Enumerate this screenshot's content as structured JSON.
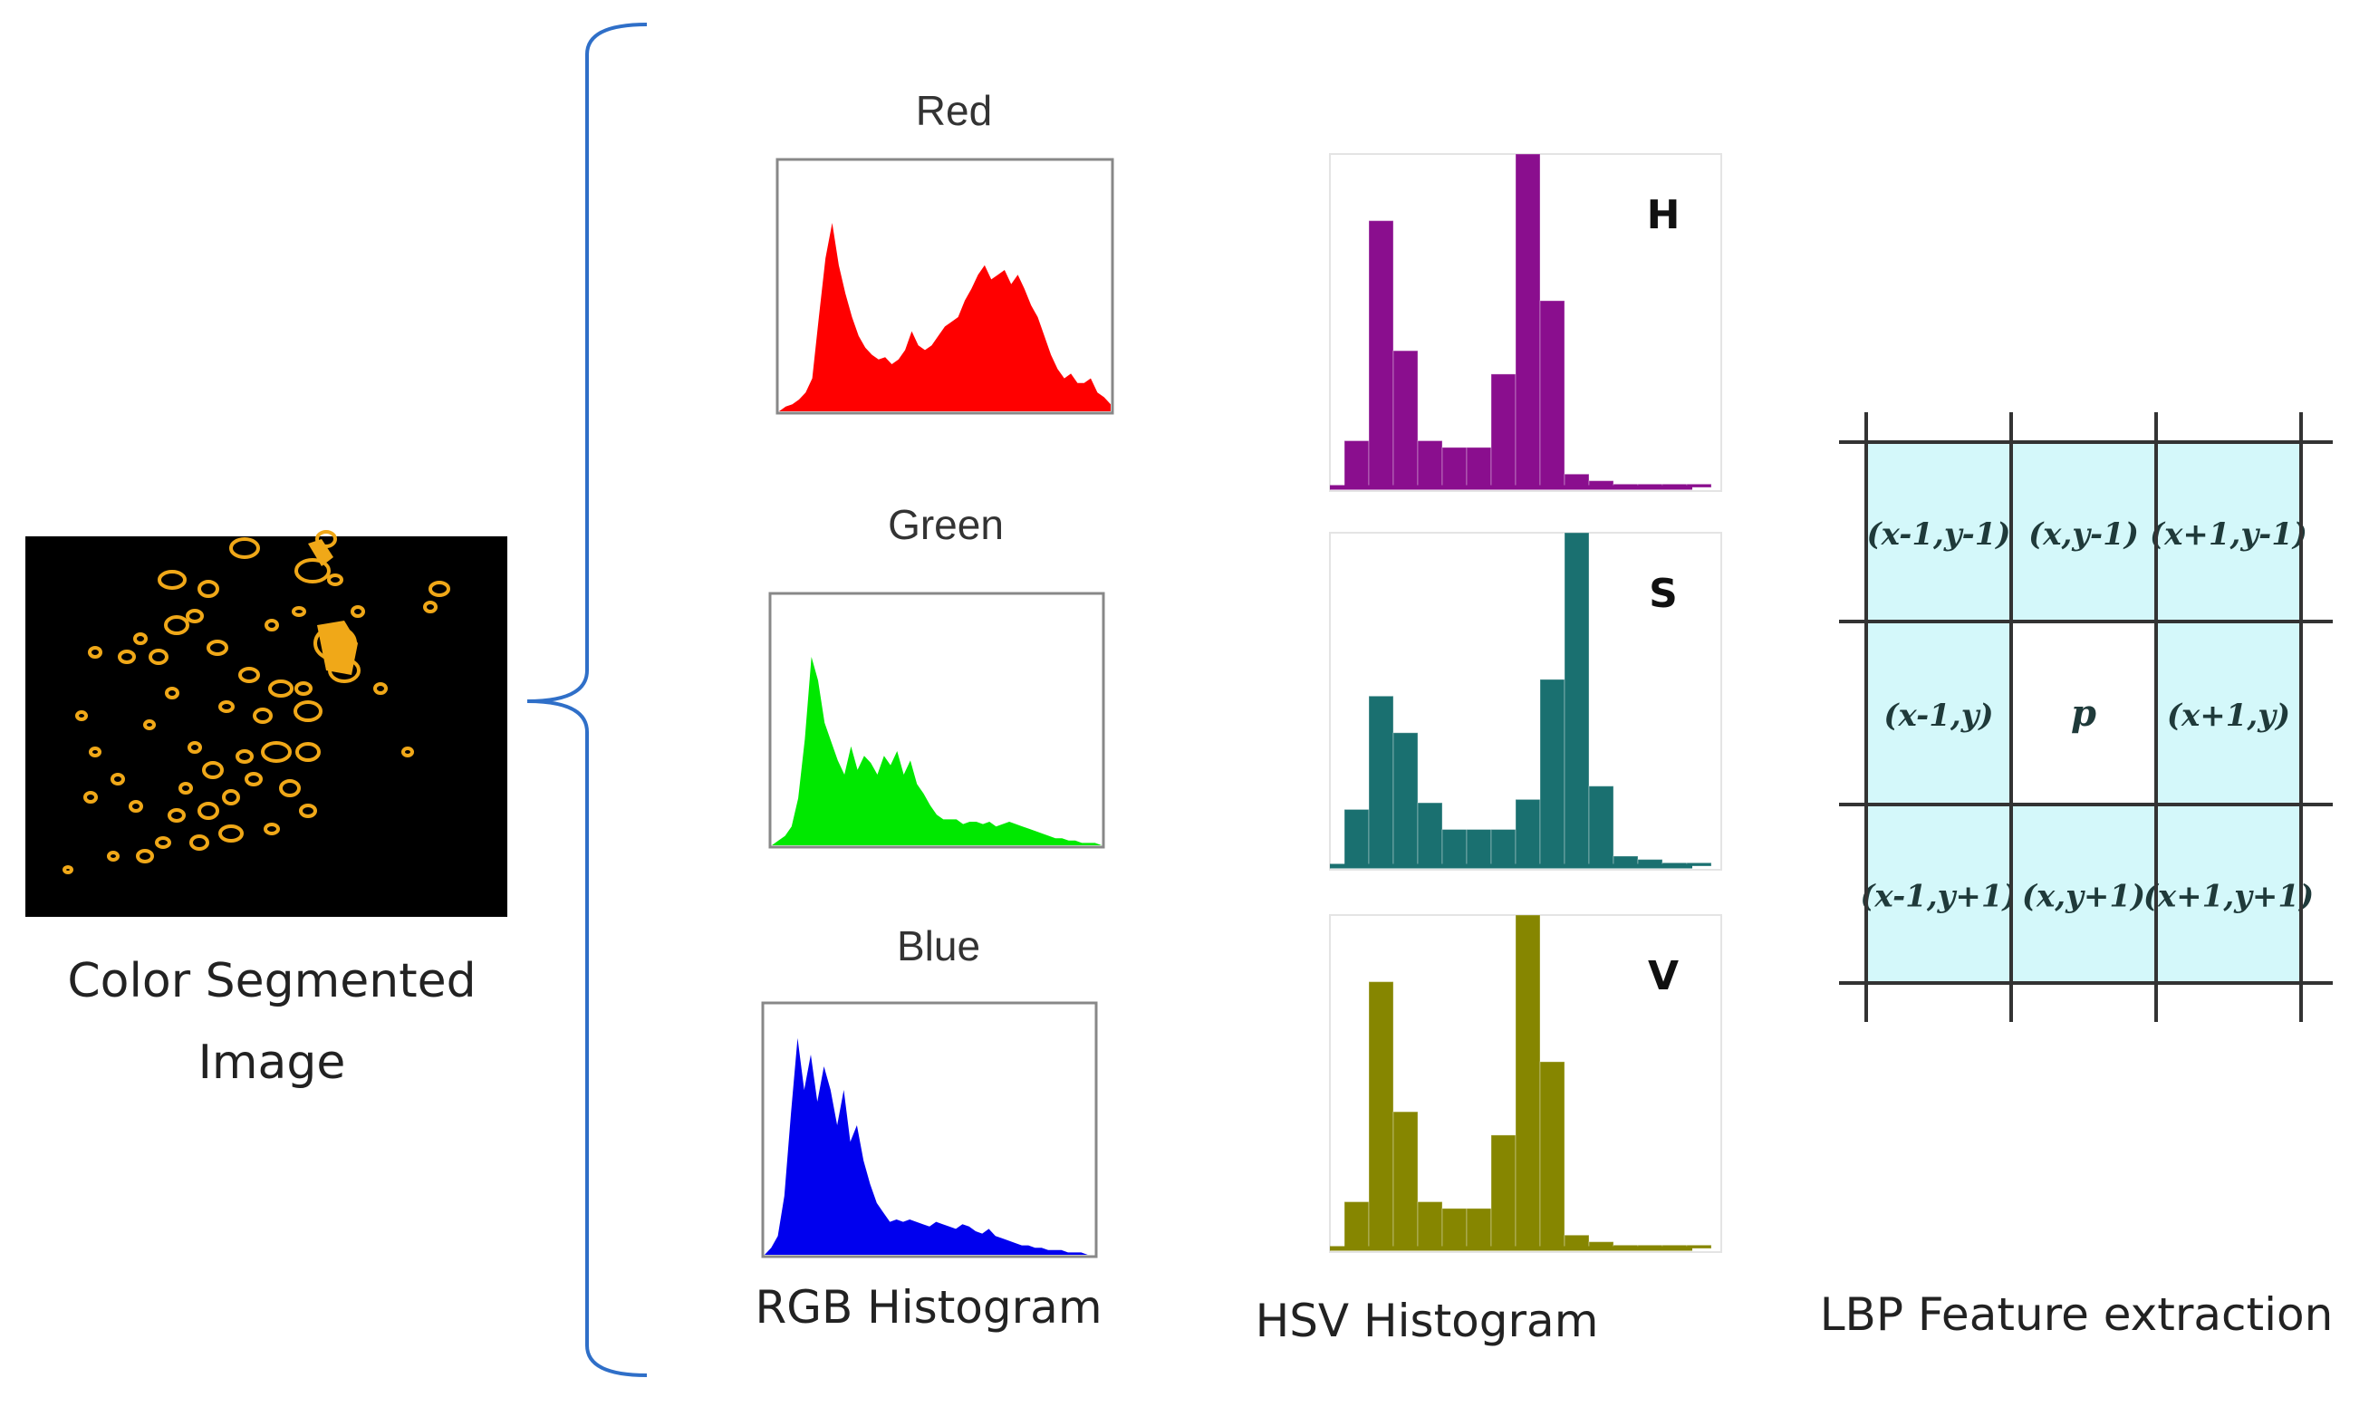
{
  "left": {
    "caption_line1": "Color Segmented",
    "caption_line2": "Image",
    "image_colors": {
      "background": "#000000",
      "blob": "#f0a818"
    }
  },
  "rgb": {
    "caption": "RGB Histogram",
    "channels": [
      {
        "label": "Red",
        "color": "#ff0000",
        "profile": [
          0,
          2,
          3,
          5,
          8,
          14,
          40,
          65,
          80,
          62,
          50,
          40,
          32,
          27,
          24,
          22,
          23,
          20,
          22,
          26,
          34,
          28,
          26,
          28,
          32,
          36,
          38,
          40,
          47,
          52,
          58,
          62,
          56,
          58,
          60,
          54,
          58,
          52,
          45,
          40,
          32,
          24,
          18,
          14,
          16,
          12,
          12,
          14,
          8,
          6,
          3
        ]
      },
      {
        "label": "Green",
        "color": "#00e800",
        "profile": [
          0,
          2,
          4,
          8,
          20,
          45,
          80,
          70,
          52,
          44,
          36,
          30,
          42,
          32,
          38,
          35,
          30,
          38,
          34,
          40,
          30,
          36,
          26,
          22,
          17,
          13,
          11,
          11,
          11,
          9,
          10,
          10,
          9,
          10,
          8,
          9,
          10,
          9,
          8,
          7,
          6,
          5,
          4,
          3,
          3,
          2,
          2,
          1,
          1,
          1,
          0
        ]
      },
      {
        "label": "Blue",
        "color": "#0000ee",
        "profile": [
          0,
          3,
          8,
          25,
          60,
          92,
          70,
          85,
          65,
          80,
          70,
          55,
          70,
          48,
          55,
          40,
          30,
          22,
          18,
          14,
          15,
          14,
          15,
          14,
          13,
          12,
          14,
          13,
          12,
          11,
          13,
          12,
          10,
          9,
          11,
          8,
          7,
          6,
          5,
          4,
          4,
          3,
          3,
          2,
          2,
          2,
          1,
          1,
          1,
          0,
          0
        ]
      }
    ]
  },
  "hsv": {
    "caption": "HSV Histogram",
    "channels": [
      {
        "label": "H",
        "color": "#8a0e8e",
        "bars": [
          14,
          80,
          41,
          14,
          12,
          12,
          34,
          100,
          56,
          4,
          2,
          1,
          1,
          1,
          1
        ]
      },
      {
        "label": "S",
        "color": "#1a7070",
        "bars": [
          17,
          51,
          40,
          19,
          11,
          11,
          11,
          20,
          56,
          100,
          24,
          3,
          2,
          1,
          1
        ]
      },
      {
        "label": "V",
        "color": "#868600",
        "bars": [
          14,
          80,
          41,
          14,
          12,
          12,
          34,
          100,
          56,
          4,
          2,
          1,
          1,
          1,
          1
        ]
      }
    ]
  },
  "lbp": {
    "caption": "LBP Feature extraction",
    "cells": [
      [
        "(x-1,y-1)",
        "(x,y-1)",
        "(x+1,y-1)"
      ],
      [
        "(x-1,y)",
        "p",
        "(x+1,y)"
      ],
      [
        "(x-1,y+1)",
        "(x,y+1)",
        "(x+1,y+1)"
      ]
    ],
    "cell_fill": "#d4f8fa",
    "center_fill": "#ffffff"
  },
  "colors": {
    "brace": "#2f6fc8"
  }
}
